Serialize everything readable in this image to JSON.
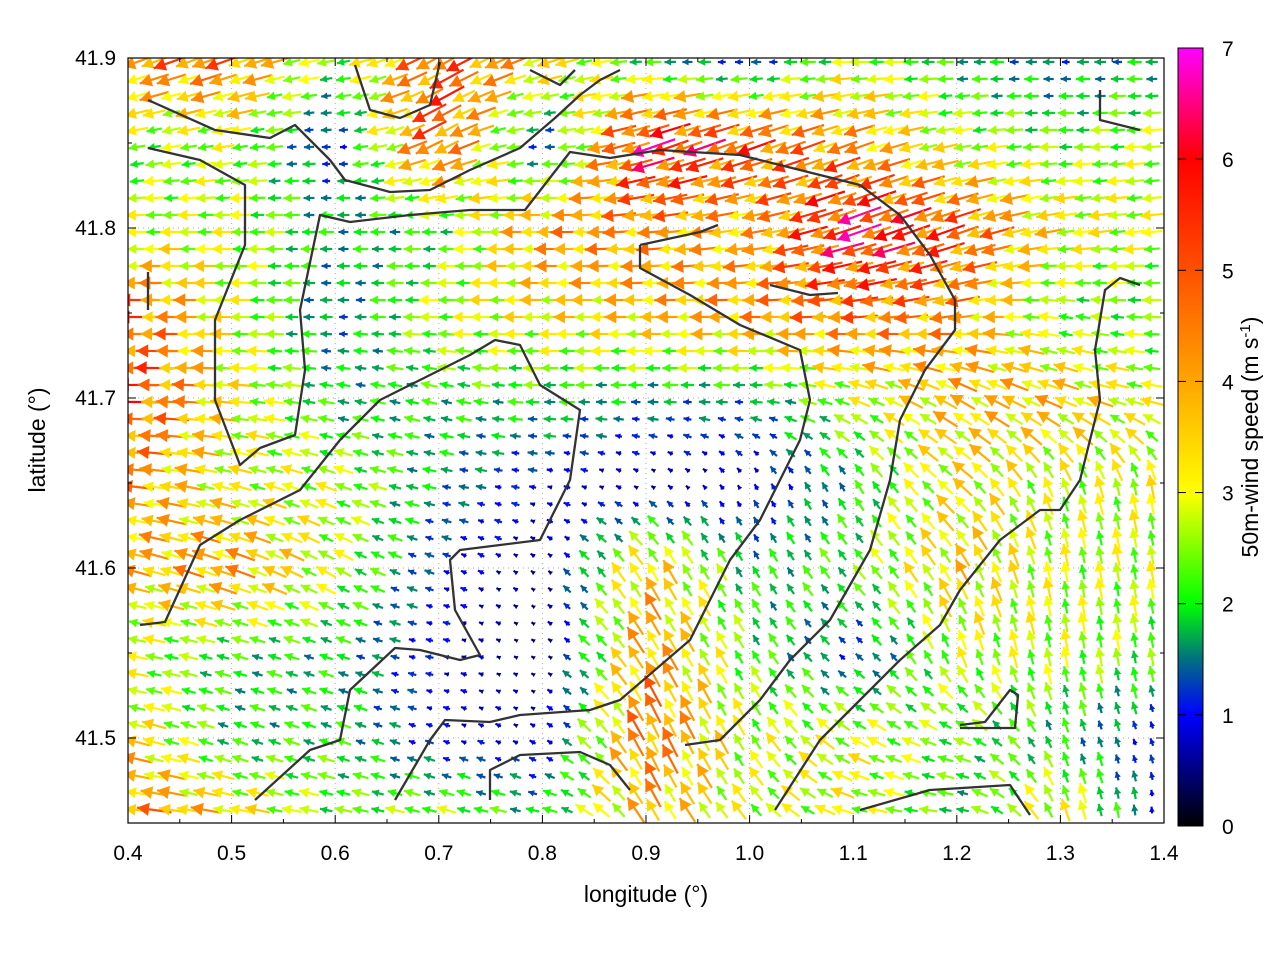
{
  "chart_data": {
    "type": "vector-field",
    "xlabel": "longitude (°)",
    "ylabel": "latitude (°)",
    "xlim": [
      0.4,
      1.4
    ],
    "ylim": [
      41.45,
      41.9
    ],
    "xticks": [
      "0.4",
      "0.5",
      "0.6",
      "0.7",
      "0.8",
      "0.9",
      "1.0",
      "1.1",
      "1.2",
      "1.3",
      "1.4"
    ],
    "yticks": [
      "41.5",
      "41.6",
      "41.7",
      "41.8",
      "41.9"
    ],
    "grid": true,
    "colorbar": {
      "label_main": "50m-wind speed (m s",
      "label_sup": "-1",
      "label_end": ")",
      "range": [
        0,
        7
      ],
      "ticks": [
        "0",
        "1",
        "2",
        "3",
        "4",
        "5",
        "6",
        "7"
      ],
      "colors": [
        {
          "value": 0,
          "color": "#000000"
        },
        {
          "value": 1,
          "color": "#0000ff"
        },
        {
          "value": 1.5,
          "color": "#007080"
        },
        {
          "value": 2,
          "color": "#00ff00"
        },
        {
          "value": 3,
          "color": "#ffff00"
        },
        {
          "value": 4,
          "color": "#ffa500"
        },
        {
          "value": 5,
          "color": "#ff5000"
        },
        {
          "value": 6,
          "color": "#ff0000"
        },
        {
          "value": 7,
          "color": "#ff00ff"
        }
      ]
    },
    "sample_lon": [
      0.4,
      0.5,
      0.6,
      0.7,
      0.8,
      0.9,
      1.0,
      1.1,
      1.2,
      1.3,
      1.4
    ],
    "sample_lat": [
      41.9,
      41.85,
      41.8,
      41.75,
      41.7,
      41.65,
      41.6,
      41.55,
      41.5,
      41.45
    ],
    "speed": [
      [
        5,
        5,
        2.5,
        5.5,
        4,
        2,
        1,
        3,
        2,
        1.5,
        2
      ],
      [
        2.5,
        3,
        1,
        5.5,
        1,
        6.5,
        5.5,
        4.5,
        3,
        2.5,
        3
      ],
      [
        3,
        3,
        2,
        2.2,
        4.5,
        4.5,
        4,
        6.5,
        5.5,
        3.5,
        3
      ],
      [
        5.5,
        3.2,
        1.5,
        3,
        3.5,
        4,
        4.5,
        5,
        4.5,
        2.5,
        2.5
      ],
      [
        5.8,
        3.5,
        2,
        2.2,
        2.2,
        1.8,
        1.7,
        3,
        4,
        4,
        3
      ],
      [
        4.5,
        3.2,
        3,
        1.8,
        1,
        0.5,
        0.8,
        2,
        3.5,
        3,
        3.2
      ],
      [
        4,
        4.5,
        3,
        1.2,
        0.5,
        4,
        2,
        2.5,
        3.8,
        3,
        3
      ],
      [
        3,
        2.2,
        2,
        1,
        0.3,
        4.5,
        2.5,
        1.2,
        3,
        3,
        2.5
      ],
      [
        3.8,
        2,
        2.3,
        1,
        0.8,
        5,
        3,
        3.2,
        2.5,
        2,
        1
      ],
      [
        5,
        4,
        2.5,
        3,
        2.2,
        4,
        3,
        3.2,
        2,
        3.8,
        1
      ]
    ],
    "direction_deg": [
      [
        200,
        200,
        190,
        210,
        200,
        180,
        180,
        180,
        180,
        180,
        180
      ],
      [
        190,
        190,
        180,
        210,
        180,
        200,
        200,
        200,
        190,
        180,
        185
      ],
      [
        180,
        180,
        180,
        180,
        180,
        185,
        190,
        200,
        200,
        190,
        185
      ],
      [
        180,
        180,
        180,
        180,
        180,
        180,
        180,
        185,
        190,
        170,
        180
      ],
      [
        180,
        175,
        170,
        165,
        180,
        180,
        180,
        160,
        150,
        160,
        170
      ],
      [
        175,
        165,
        160,
        170,
        170,
        150,
        120,
        120,
        140,
        110,
        100
      ],
      [
        165,
        160,
        150,
        160,
        140,
        120,
        120,
        130,
        120,
        100,
        100
      ],
      [
        170,
        165,
        160,
        170,
        150,
        120,
        120,
        140,
        110,
        100,
        100
      ],
      [
        165,
        160,
        160,
        160,
        150,
        115,
        120,
        150,
        160,
        110,
        110
      ],
      [
        175,
        170,
        170,
        165,
        170,
        120,
        130,
        170,
        175,
        110,
        90
      ]
    ]
  }
}
